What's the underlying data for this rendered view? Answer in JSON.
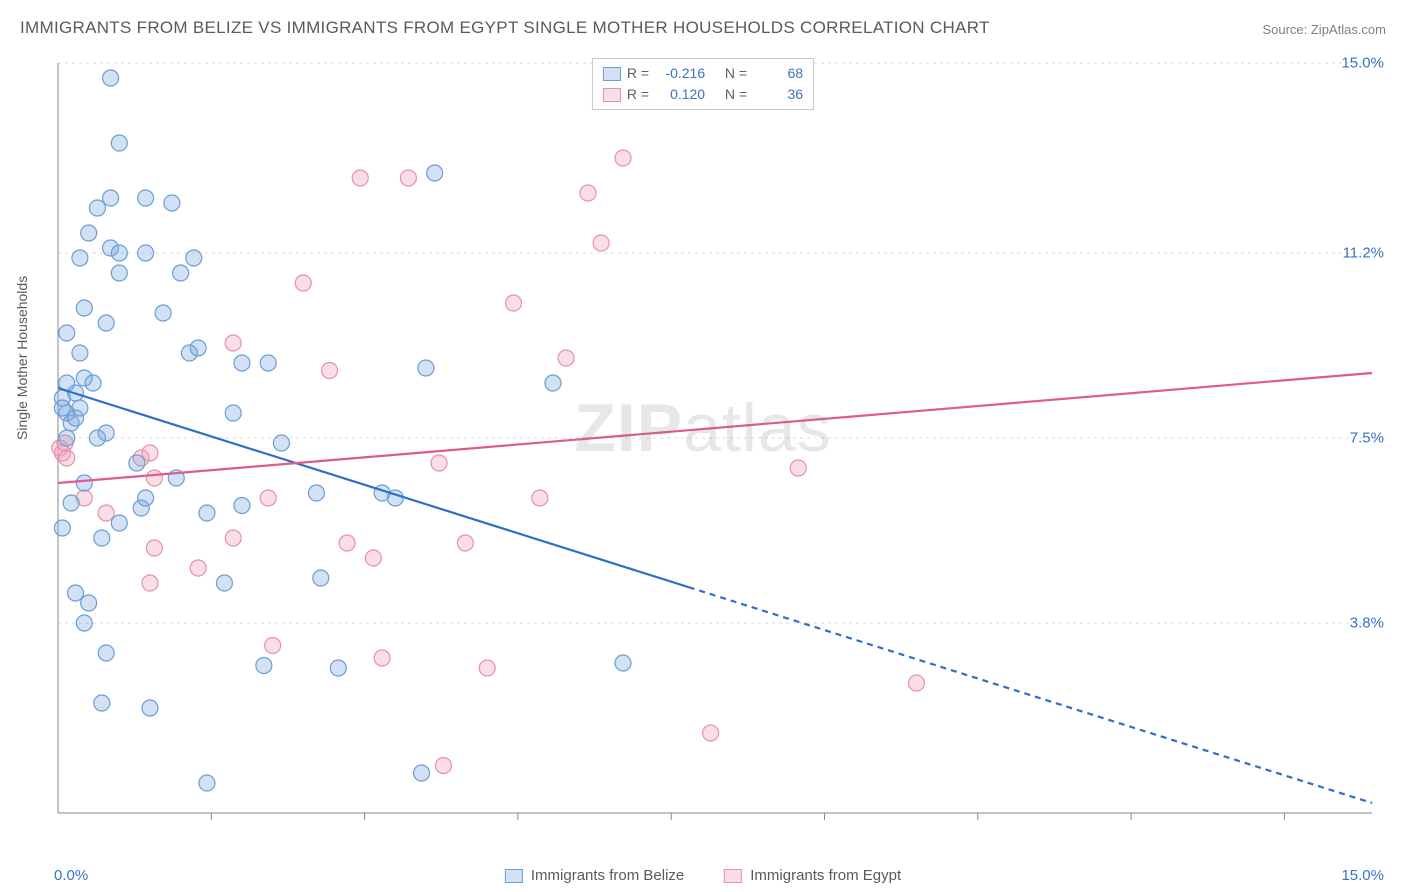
{
  "title": "IMMIGRANTS FROM BELIZE VS IMMIGRANTS FROM EGYPT SINGLE MOTHER HOUSEHOLDS CORRELATION CHART",
  "source_label": "Source: ",
  "source_name": "ZipAtlas.com",
  "ylabel": "Single Mother Households",
  "watermark_bold": "ZIP",
  "watermark_light": "atlas",
  "legend_bottom": {
    "series_a": "Immigrants from Belize",
    "series_b": "Immigrants from Egypt"
  },
  "stats": {
    "r_label": "R =",
    "n_label": "N =",
    "series_a": {
      "r": "-0.216",
      "n": "68"
    },
    "series_b": {
      "r": "0.120",
      "n": "36"
    }
  },
  "axes": {
    "xlim": [
      0,
      15
    ],
    "ylim": [
      0,
      15
    ],
    "xmin_label": "0.0%",
    "xmax_label": "15.0%",
    "yticks": [
      {
        "v": 3.8,
        "label": "3.8%"
      },
      {
        "v": 7.5,
        "label": "7.5%"
      },
      {
        "v": 11.2,
        "label": "11.2%"
      },
      {
        "v": 15.0,
        "label": "15.0%"
      }
    ],
    "gridline_values": [
      3.8,
      7.5,
      11.2,
      15.0
    ],
    "xtick_values": [
      1.75,
      3.5,
      5.25,
      7.0,
      8.75,
      10.5,
      12.25,
      14.0
    ]
  },
  "plot": {
    "type": "scatter_with_regression",
    "background_color": "#ffffff",
    "grid_color": "#d8d8d8",
    "axis_color": "#8a8a8a",
    "marker_radius": 8,
    "marker_stroke_width": 1.2,
    "line_width": 2.2
  },
  "series_a": {
    "name": "Immigrants from Belize",
    "fill": "rgba(125,170,220,0.35)",
    "stroke": "#6a9ed6",
    "line_color": "#2e6fc7",
    "regression": {
      "x0": 0,
      "y0": 8.5,
      "x1": 15,
      "y1": 0.2,
      "solid_until_x": 7.2
    },
    "points": [
      [
        0.2,
        8.4
      ],
      [
        0.1,
        8.0
      ],
      [
        0.15,
        7.8
      ],
      [
        0.1,
        7.5
      ],
      [
        0.2,
        7.9
      ],
      [
        0.25,
        8.1
      ],
      [
        0.05,
        8.3
      ],
      [
        0.1,
        8.6
      ],
      [
        0.1,
        9.6
      ],
      [
        0.25,
        11.1
      ],
      [
        0.35,
        11.6
      ],
      [
        0.3,
        10.1
      ],
      [
        0.45,
        12.1
      ],
      [
        0.6,
        14.7
      ],
      [
        0.6,
        11.3
      ],
      [
        0.7,
        10.8
      ],
      [
        0.7,
        11.2
      ],
      [
        0.55,
        9.8
      ],
      [
        0.55,
        7.6
      ],
      [
        0.7,
        13.4
      ],
      [
        0.6,
        12.3
      ],
      [
        1.0,
        11.2
      ],
      [
        1.0,
        12.3
      ],
      [
        1.3,
        12.2
      ],
      [
        1.55,
        11.1
      ],
      [
        1.4,
        10.8
      ],
      [
        1.2,
        10.0
      ],
      [
        1.5,
        9.2
      ],
      [
        1.6,
        9.3
      ],
      [
        0.45,
        7.5
      ],
      [
        0.3,
        6.6
      ],
      [
        0.05,
        5.7
      ],
      [
        0.2,
        4.4
      ],
      [
        0.3,
        3.8
      ],
      [
        0.55,
        3.2
      ],
      [
        0.5,
        2.2
      ],
      [
        1.05,
        2.1
      ],
      [
        0.95,
        6.1
      ],
      [
        1.0,
        6.3
      ],
      [
        0.7,
        5.8
      ],
      [
        0.5,
        5.5
      ],
      [
        1.35,
        6.7
      ],
      [
        1.7,
        6.0
      ],
      [
        1.9,
        4.6
      ],
      [
        2.1,
        6.15
      ],
      [
        2.0,
        8.0
      ],
      [
        2.1,
        9.0
      ],
      [
        2.4,
        9.0
      ],
      [
        2.55,
        7.4
      ],
      [
        2.35,
        2.95
      ],
      [
        2.95,
        6.4
      ],
      [
        3.0,
        4.7
      ],
      [
        3.2,
        2.9
      ],
      [
        3.7,
        6.4
      ],
      [
        3.85,
        6.3
      ],
      [
        4.15,
        0.8
      ],
      [
        4.3,
        12.8
      ],
      [
        4.2,
        8.9
      ],
      [
        1.7,
        0.6
      ],
      [
        5.65,
        8.6
      ],
      [
        6.45,
        3.0
      ],
      [
        0.9,
        7.0
      ],
      [
        0.35,
        4.2
      ],
      [
        0.25,
        9.2
      ],
      [
        0.3,
        8.7
      ],
      [
        0.05,
        8.1
      ],
      [
        0.15,
        6.2
      ],
      [
        0.4,
        8.6
      ]
    ]
  },
  "series_b": {
    "name": "Immigrants from Egypt",
    "fill": "rgba(240,160,180,0.35)",
    "stroke": "#e890aa",
    "line_color": "#e05a90",
    "regression": {
      "x0": 0,
      "y0": 6.6,
      "x1": 15,
      "y1": 8.8
    },
    "points": [
      [
        0.02,
        7.3
      ],
      [
        0.05,
        7.2
      ],
      [
        0.08,
        7.4
      ],
      [
        0.1,
        7.1
      ],
      [
        0.3,
        6.3
      ],
      [
        0.55,
        6.0
      ],
      [
        0.95,
        7.1
      ],
      [
        1.1,
        6.7
      ],
      [
        1.05,
        7.2
      ],
      [
        1.05,
        4.6
      ],
      [
        1.6,
        4.9
      ],
      [
        1.1,
        5.3
      ],
      [
        2.0,
        9.4
      ],
      [
        2.0,
        5.5
      ],
      [
        2.4,
        6.3
      ],
      [
        2.45,
        3.35
      ],
      [
        2.8,
        10.6
      ],
      [
        3.1,
        8.85
      ],
      [
        3.3,
        5.4
      ],
      [
        3.45,
        12.7
      ],
      [
        3.6,
        5.1
      ],
      [
        3.7,
        3.1
      ],
      [
        4.0,
        12.7
      ],
      [
        4.35,
        7.0
      ],
      [
        4.4,
        0.95
      ],
      [
        4.65,
        5.4
      ],
      [
        4.9,
        2.9
      ],
      [
        5.2,
        10.2
      ],
      [
        5.5,
        6.3
      ],
      [
        5.8,
        9.1
      ],
      [
        6.05,
        12.4
      ],
      [
        6.2,
        11.4
      ],
      [
        6.45,
        13.1
      ],
      [
        7.45,
        1.6
      ],
      [
        8.45,
        6.9
      ],
      [
        9.8,
        2.6
      ]
    ]
  }
}
